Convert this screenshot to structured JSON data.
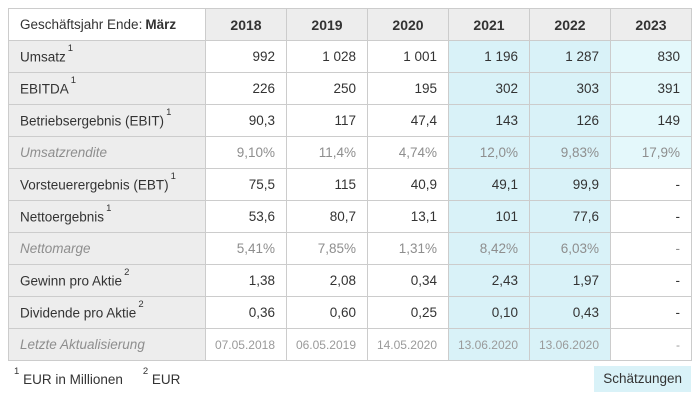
{
  "header": {
    "corner_prefix": "Geschäftsjahr Ende:",
    "corner_bold": "März",
    "years": [
      "2018",
      "2019",
      "2020",
      "2021",
      "2022",
      "2023"
    ]
  },
  "rows": [
    {
      "label": "Umsatz",
      "sup": "1",
      "muted": false,
      "date_row": false,
      "values": [
        "992",
        "1 028",
        "1 001",
        "1 196",
        "1 287",
        "830"
      ]
    },
    {
      "label": "EBITDA",
      "sup": "1",
      "muted": false,
      "date_row": false,
      "values": [
        "226",
        "250",
        "195",
        "302",
        "303",
        "391"
      ]
    },
    {
      "label": "Betriebsergebnis (EBIT)",
      "sup": "1",
      "muted": false,
      "date_row": false,
      "values": [
        "90,3",
        "117",
        "47,4",
        "143",
        "126",
        "149"
      ]
    },
    {
      "label": "Umsatzrendite",
      "sup": "",
      "muted": true,
      "date_row": false,
      "values": [
        "9,10%",
        "11,4%",
        "4,74%",
        "12,0%",
        "9,83%",
        "17,9%"
      ]
    },
    {
      "label": "Vorsteuerergebnis (EBT)",
      "sup": "1",
      "muted": false,
      "date_row": false,
      "values": [
        "75,5",
        "115",
        "40,9",
        "49,1",
        "99,9",
        "-"
      ]
    },
    {
      "label": "Nettoergebnis",
      "sup": "1",
      "muted": false,
      "date_row": false,
      "values": [
        "53,6",
        "80,7",
        "13,1",
        "101",
        "77,6",
        "-"
      ]
    },
    {
      "label": "Nettomarge",
      "sup": "",
      "muted": true,
      "date_row": false,
      "values": [
        "5,41%",
        "7,85%",
        "1,31%",
        "8,42%",
        "6,03%",
        "-"
      ]
    },
    {
      "label": "Gewinn pro Aktie",
      "sup": "2",
      "muted": false,
      "date_row": false,
      "values": [
        "1,38",
        "2,08",
        "0,34",
        "2,43",
        "1,97",
        "-"
      ]
    },
    {
      "label": "Dividende pro Aktie",
      "sup": "2",
      "muted": false,
      "date_row": false,
      "values": [
        "0,36",
        "0,60",
        "0,25",
        "0,10",
        "0,43",
        "-"
      ]
    },
    {
      "label": "Letzte Aktualisierung",
      "sup": "",
      "muted": true,
      "date_row": true,
      "values": [
        "07.05.2018",
        "06.05.2019",
        "14.05.2020",
        "13.06.2020",
        "13.06.2020",
        "-"
      ]
    }
  ],
  "estimate_columns": [
    3,
    4
  ],
  "estimate_2023_column": 5,
  "footnotes": [
    {
      "sup": "1",
      "text": "EUR in Millionen"
    },
    {
      "sup": "2",
      "text": "EUR"
    }
  ],
  "legend_label": "Schätzungen",
  "colors": {
    "estimate_bg": "#d9f2f8",
    "estimate_2023_bg": "#e4f8fb",
    "label_bg": "#ededed",
    "border": "#cccccc"
  }
}
